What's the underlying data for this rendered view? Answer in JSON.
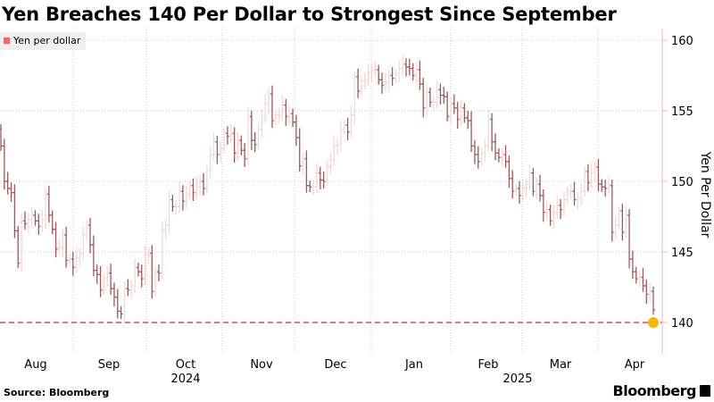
{
  "title": "Yen Breaches 140 Per Dollar to Strongest Since September",
  "source": "Source: Bloomberg",
  "logo": "Bloomberg",
  "colors": {
    "down_bar": "#9c5a5c",
    "up_bar": "#f6d6d6",
    "legend": "#f0676a",
    "threshold_line": "#e0446a",
    "marker": "#f5b800",
    "axis": "#f2b8b8"
  },
  "chart_data": {
    "type": "ohlc",
    "series": [
      {
        "name": "Yen per dollar"
      }
    ],
    "frequency": "business days",
    "start_date": "2024-07-29",
    "closes": [
      152.5,
      150,
      149.5,
      149.2,
      146.5,
      144.2,
      147.2,
      147,
      147.3,
      147.6,
      147.2,
      146.8,
      147.3,
      149.1,
      147.6,
      146.6,
      145.2,
      145.3,
      146.2,
      144.4,
      144.5,
      143.9,
      144.6,
      144.9,
      146.2,
      146.9,
      145.5,
      143.7,
      143.4,
      142.3,
      143.1,
      143.5,
      142.4,
      141.8,
      140.8,
      140.6,
      142.4,
      142.3,
      142.6,
      143.9,
      143.6,
      143.1,
      144.8,
      144.9,
      142.2,
      143.6,
      143.5,
      146.5,
      146.9,
      148.7,
      148.2,
      148.2,
      149.3,
      148.6,
      149.1,
      149.7,
      149.2,
      149.6,
      150.0,
      149.5,
      150.8,
      151.9,
      152.8,
      151.9,
      152.3,
      153.4,
      153.2,
      153.4,
      152.0,
      152.9,
      152.2,
      151.6,
      154.6,
      152.9,
      152.6,
      153.7,
      154.6,
      155.5,
      156.2,
      154.3,
      154.7,
      154.7,
      155.4,
      154.6,
      154.8,
      154.2,
      153.1,
      151.1,
      151.6,
      149.7,
      149.6,
      149.6,
      150.6,
      150.1,
      150.0,
      151.1,
      151.5,
      152.5,
      152.6,
      153.7,
      154.0,
      153.5,
      154.7,
      157.4,
      156.4,
      157.1,
      157.2,
      157.7,
      157.9,
      157.9,
      157.2,
      156.8,
      157.0,
      157.5,
      157.3,
      157.6,
      158.0,
      158.3,
      158.1,
      158.0,
      157.5,
      157.9,
      156.9,
      155.2,
      156.3,
      155.6,
      155.6,
      156.5,
      156.1,
      156.0,
      154.6,
      155.5,
      155.2,
      154.4,
      155.2,
      154.5,
      154.3,
      152.5,
      151.9,
      151.4,
      152.0,
      152.5,
      154.4,
      152.8,
      152.0,
      151.7,
      151.9,
      151.4,
      150.2,
      149.3,
      149.5,
      149.0,
      149.5,
      149.8,
      150.6,
      149.3,
      149.8,
      149.0,
      147.8,
      148.0,
      147.2,
      147.8,
      148.3,
      148.0,
      148.7,
      149.3,
      149.3,
      148.7,
      148.8,
      149.3,
      150.7,
      149.9,
      150.6,
      151.0,
      149.8,
      149.6,
      149.5,
      149.7,
      146.4,
      146.9,
      147.9,
      146.4,
      147.6,
      144.5,
      143.6,
      143.1,
      143.2,
      142.6,
      142.0,
      142.2,
      140.9
    ],
    "threshold": 140,
    "x_month_labels": [
      "Aug",
      "Sep",
      "Oct",
      "Nov",
      "Dec",
      "Jan",
      "Feb",
      "Mar",
      "Apr"
    ],
    "x_year_labels": [
      "2024",
      "2025"
    ],
    "y_ticks": [
      140,
      145,
      150,
      155,
      160
    ],
    "ylim": [
      138.9,
      160.6
    ],
    "ylabel": "Yen Per Dollar",
    "y_axis_side": "right",
    "grid": true,
    "legend_position": "top-left"
  }
}
